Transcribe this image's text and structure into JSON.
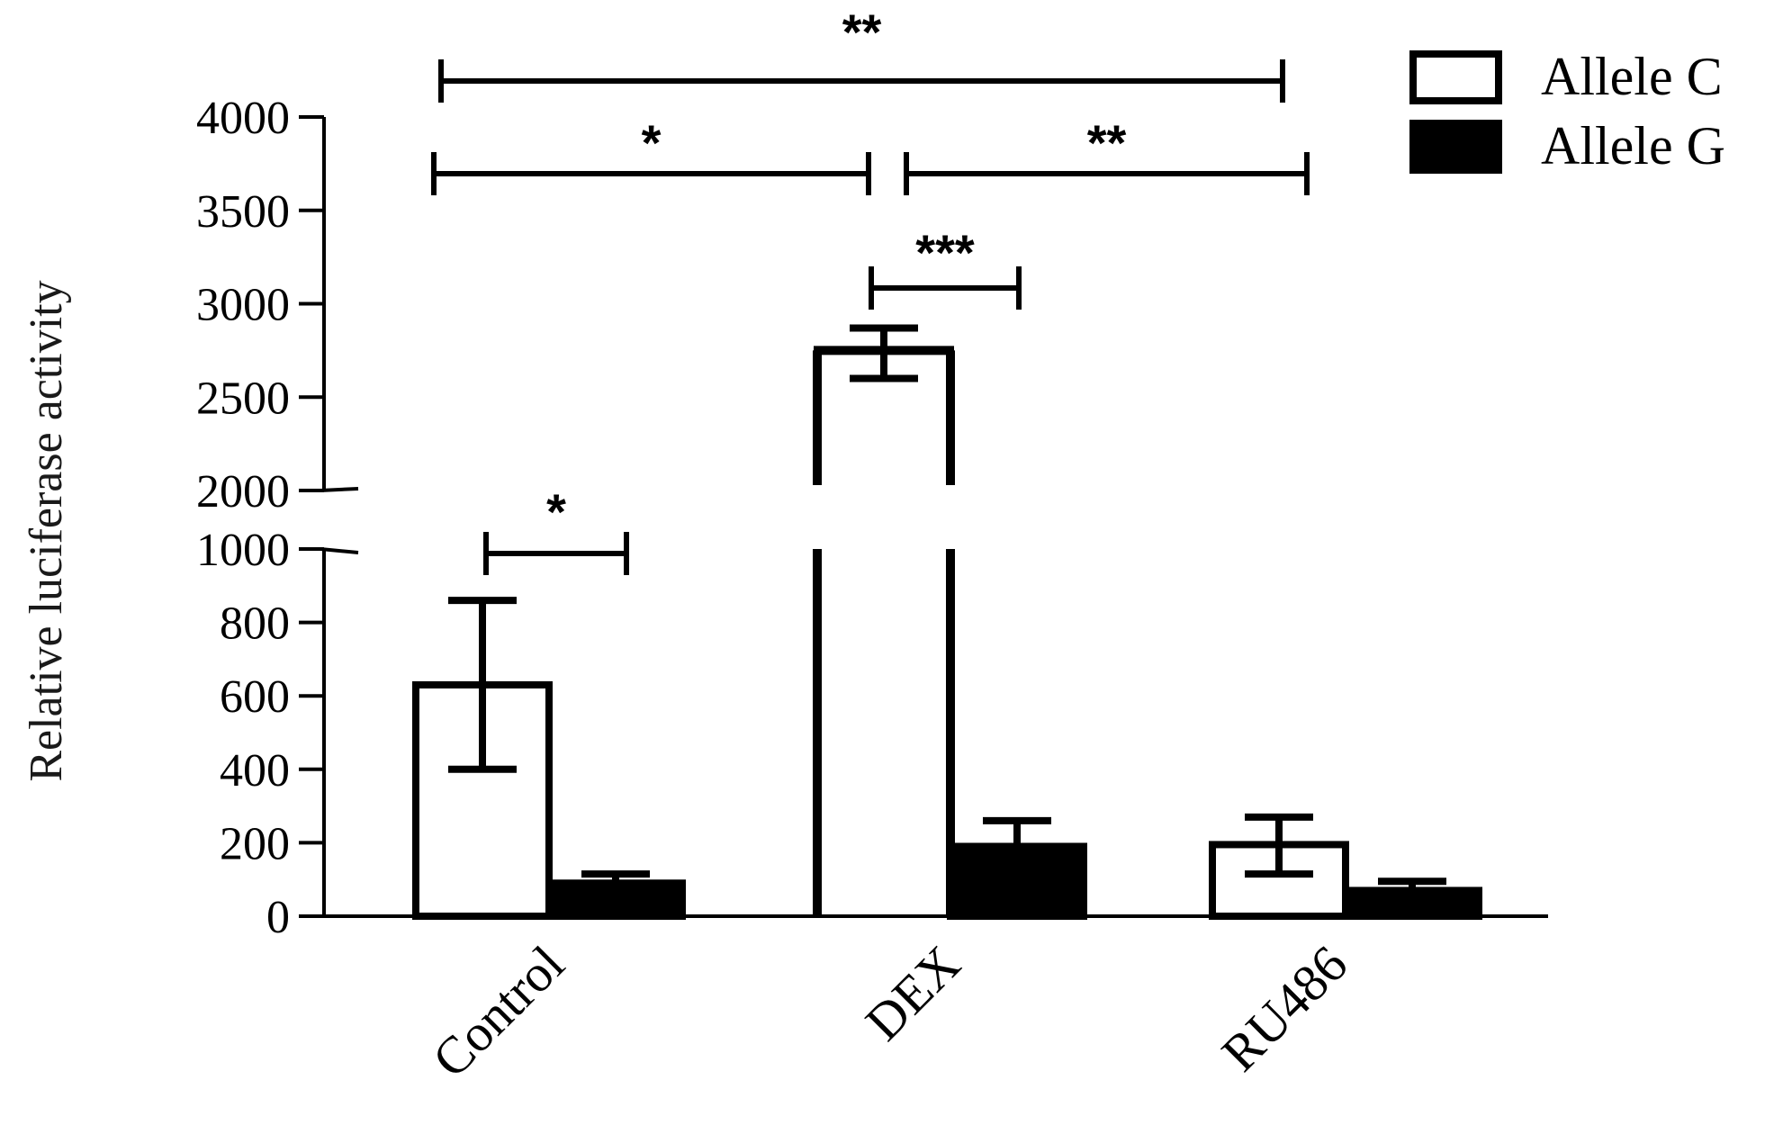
{
  "chart_data": {
    "type": "bar",
    "categories": [
      "Control",
      "DEX",
      "RU486"
    ],
    "ylabel": "Relative luciferase activity",
    "xlabel": "",
    "broken_axis": true,
    "lower_segment_ylim": [
      0,
      1000
    ],
    "upper_segment_ylim": [
      2000,
      4000
    ],
    "lower_ticks": [
      "0",
      "200",
      "400",
      "600",
      "800",
      "1000"
    ],
    "upper_ticks": [
      "2000",
      "2500",
      "3000",
      "3500",
      "4000"
    ],
    "series": [
      {
        "name": "Allele C",
        "fill": "#ffffff",
        "values": [
          630,
          2750,
          195
        ],
        "err_upper": [
          860,
          2870,
          270
        ],
        "err_lower": [
          400,
          2600,
          115
        ]
      },
      {
        "name": "Allele G",
        "fill": "#000000",
        "values": [
          90,
          190,
          70
        ],
        "err_upper": [
          115,
          260,
          95
        ],
        "err_lower": [
          65,
          120,
          45
        ]
      }
    ],
    "significance": [
      {
        "label": "**",
        "from": "Control",
        "to": "RU486",
        "level_value": 4250
      },
      {
        "label": "*",
        "from": "Control",
        "to": "DEX",
        "level_value": 3700
      },
      {
        "label": "**",
        "from": "DEX",
        "to": "RU486",
        "level_value": 3700
      },
      {
        "label": "***",
        "from": "DEX-C",
        "to": "DEX-G",
        "level_value": 3050
      },
      {
        "label": "*",
        "from": "Control-C",
        "to": "Control-G",
        "level_value": 980
      }
    ],
    "legend_position": "top-right",
    "grid": false
  }
}
